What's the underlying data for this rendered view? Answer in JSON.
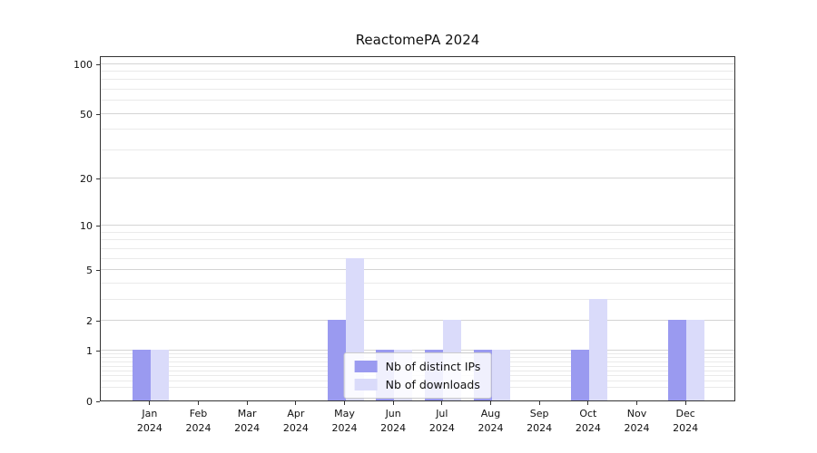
{
  "chart_data": {
    "type": "bar",
    "title": "ReactomePA 2024",
    "yscale": "log1p",
    "grid": true,
    "months": [
      "Jan",
      "Feb",
      "Mar",
      "Apr",
      "May",
      "Jun",
      "Jul",
      "Aug",
      "Sep",
      "Oct",
      "Nov",
      "Dec"
    ],
    "year": "2024",
    "series": [
      {
        "name": "Nb of distinct IPs",
        "color": "#9a9af0",
        "values": [
          1,
          0,
          0,
          0,
          2,
          1,
          1,
          1,
          0,
          1,
          0,
          2
        ]
      },
      {
        "name": "Nb of downloads",
        "color": "#dadbfa",
        "values": [
          1,
          0,
          0,
          0,
          6,
          1,
          2,
          1,
          0,
          3,
          0,
          2
        ]
      }
    ],
    "yticks": [
      0,
      1,
      2,
      5,
      10,
      20,
      50,
      100
    ],
    "ylim": [
      0,
      112
    ],
    "legend_position": "lower center"
  }
}
